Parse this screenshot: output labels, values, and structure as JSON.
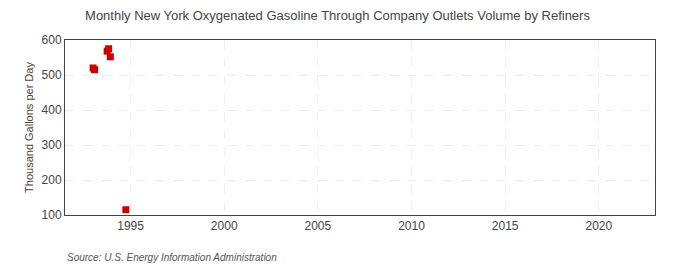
{
  "chart_data": {
    "type": "scatter",
    "title": "Monthly New York Oxygenated Gasoline Through Company Outlets Volume by Refiners",
    "ylabel": "Thousand Gallons per Day",
    "annotations": [
      "Source: U.S. Energy Information Administration"
    ],
    "x": [
      1993.0,
      1993.08,
      1993.75,
      1993.83,
      1993.92,
      1994.75
    ],
    "values": [
      520,
      515,
      568,
      575,
      552,
      115
    ],
    "color": "#cc0000",
    "marker": "square",
    "xlim": [
      1991.5,
      2023
    ],
    "ylim": [
      100,
      600
    ],
    "xticks": [
      1995,
      2000,
      2005,
      2010,
      2015,
      2020
    ],
    "yticks": [
      100,
      200,
      300,
      400,
      500,
      600
    ],
    "grid": true
  }
}
